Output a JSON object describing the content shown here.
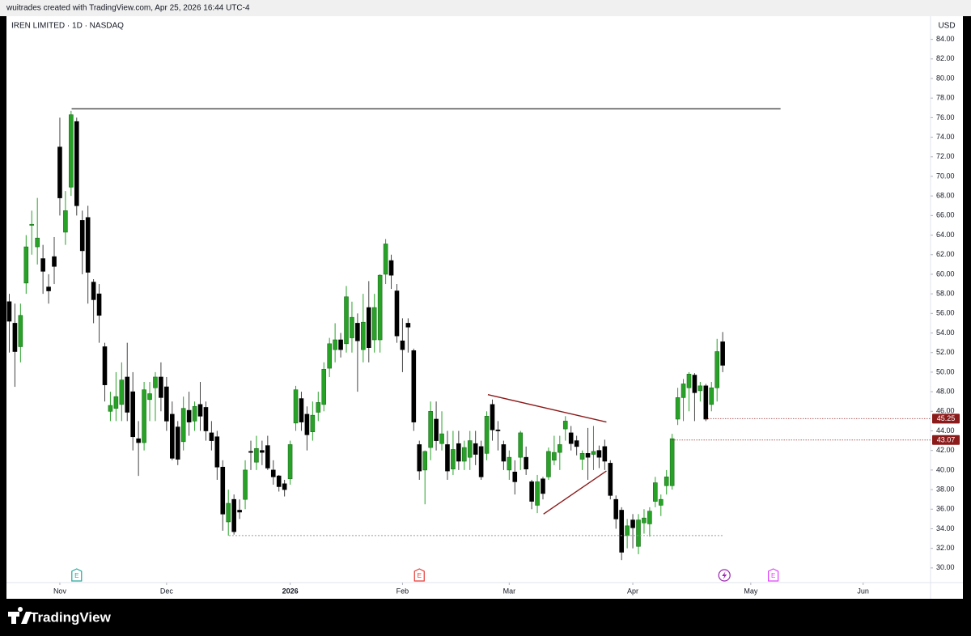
{
  "header": {
    "credit": "wuitrades created with TradingView.com, Apr 25, 2026 16:44 UTC-4"
  },
  "footer": {
    "brand": "TradingView"
  },
  "chart_data": {
    "type": "candlestick",
    "title": "IREN LIMITED · 1D · NASDAQ",
    "currency": "USD",
    "up_color": "#27a227",
    "down_color": "#000000",
    "open": [
      57.2,
      55,
      52.6,
      59.1,
      65,
      62.8,
      61.6,
      58.7,
      61.8,
      73,
      64.3,
      68.9,
      75.6,
      65.5,
      65.8,
      59.2,
      58,
      52.6,
      46,
      46.3,
      46.7,
      49.5,
      48,
      43.2,
      42.8,
      47.2,
      48.4,
      49.5,
      48.5,
      45.7,
      44.4,
      42.9,
      46.1,
      45,
      46.7,
      46.4,
      43.8,
      43.4,
      40.3,
      34.7,
      37,
      35.9,
      37,
      41.9,
      40.8,
      42,
      42.5,
      40,
      39.4,
      38.6,
      39.1,
      44.8,
      47.3,
      45.7,
      43.9,
      45.9,
      46.7,
      50.4,
      52.3,
      53.3,
      52.9,
      53.5,
      55,
      52.3,
      56.6,
      53.3,
      53.3,
      60,
      61.4,
      58.3,
      53.2,
      55,
      52.2,
      42.6,
      40,
      42.3,
      45.2,
      42.7,
      42.6,
      40.1,
      42.7,
      40.9,
      41.3,
      42.7,
      42.4,
      41.7,
      46.7,
      44.1,
      42.6,
      40,
      39.8,
      41.3,
      41.3,
      38.8,
      36.4,
      39.1,
      39.3,
      41,
      41.8,
      44.2,
      43.8,
      43,
      41.1,
      41.7,
      41.6,
      42,
      42.4,
      40.7,
      37,
      35.9,
      33.3,
      34.9,
      32.2,
      34.6,
      34.5,
      36.8,
      36.4,
      38.4,
      38.4,
      45.2,
      47.4,
      48.4,
      49.7,
      48.1,
      48.6,
      46.7,
      48.4,
      53.1
    ],
    "high": [
      58,
      57,
      57,
      64,
      66.5,
      67.8,
      63,
      60,
      63.8,
      76,
      68.5,
      76.7,
      76,
      66.5,
      67,
      59.5,
      59,
      53,
      48,
      50,
      51,
      53,
      50,
      45,
      49,
      49,
      50,
      51,
      49.5,
      47,
      45,
      47.5,
      48,
      47,
      49,
      47,
      45,
      44,
      41,
      38,
      37.5,
      37,
      41,
      43,
      43.5,
      43,
      43.5,
      41,
      39.5,
      39,
      43,
      48.6,
      48,
      46.5,
      47,
      48,
      51,
      53.5,
      55,
      54,
      58.8,
      57.2,
      56,
      58,
      59.3,
      58,
      60,
      63.6,
      62,
      59,
      55.5,
      55.5,
      52.4,
      43,
      42,
      47,
      47,
      46,
      44,
      44,
      44,
      43,
      44,
      44,
      43,
      46,
      47.2,
      45,
      43,
      42,
      41,
      44,
      42.4,
      39,
      39.5,
      39.3,
      42.3,
      43.5,
      43.5,
      45.5,
      44.5,
      43.5,
      42,
      44.3,
      44.5,
      42.5,
      43.1,
      41,
      37.4,
      36.2,
      35,
      35.5,
      35.5,
      36,
      36.2,
      39.3,
      37.5,
      40,
      43.7,
      48.4,
      49.3,
      50,
      49.9,
      49,
      48.8,
      49,
      53.4,
      54.1
    ],
    "low": [
      52,
      48.5,
      51,
      58,
      62,
      61,
      58,
      57,
      59,
      66,
      63,
      68,
      66,
      60,
      57,
      55,
      53,
      47,
      45,
      45,
      45,
      45,
      42,
      39.4,
      42,
      45,
      45,
      46,
      44,
      41,
      40.5,
      42,
      43.5,
      44,
      44,
      43,
      42,
      39,
      33.8,
      33.3,
      33.4,
      35,
      36,
      40,
      40,
      40.5,
      40,
      38.5,
      37.8,
      37.3,
      38.5,
      44,
      44,
      42,
      43,
      45,
      46,
      49.5,
      51,
      51.5,
      52,
      52,
      48,
      51,
      51,
      52,
      52,
      59,
      58.5,
      53,
      50,
      52,
      44,
      39,
      36.5,
      41,
      42,
      42,
      39,
      39.5,
      40,
      40,
      40,
      40.5,
      39,
      41,
      43,
      42,
      40,
      39,
      37.5,
      40,
      39.5,
      36,
      35.6,
      37,
      39,
      40.5,
      40,
      43,
      42,
      41.5,
      40,
      39,
      40,
      40.2,
      40,
      37,
      34,
      30.8,
      32,
      32,
      31.4,
      33.5,
      33.2,
      36.2,
      35.3,
      37.5,
      38,
      44.6,
      45,
      46,
      45,
      47,
      45,
      46,
      47,
      50
    ],
    "close": [
      55.2,
      52.1,
      55.8,
      62.8,
      65.1,
      63.7,
      60.3,
      58.3,
      60.8,
      67.8,
      66.5,
      76.3,
      67,
      62.4,
      60.2,
      57.4,
      55.8,
      48.7,
      46.6,
      47.5,
      49.2,
      45.9,
      43.4,
      42.8,
      48.2,
      47.8,
      49.5,
      47.4,
      45,
      41.2,
      41.1,
      46.3,
      44.9,
      46.5,
      45.5,
      44,
      43,
      40.3,
      35.5,
      36.6,
      33.7,
      35.7,
      40,
      41.8,
      42.2,
      41.8,
      40.2,
      39.3,
      38.3,
      38,
      42.6,
      48.2,
      44.9,
      43.6,
      45.6,
      46.9,
      50.3,
      52.9,
      53.3,
      52.3,
      57.7,
      55.6,
      53.2,
      55.1,
      52.5,
      56.6,
      59.9,
      63.1,
      59.9,
      53.7,
      52.3,
      54.6,
      44.9,
      39.9,
      41.9,
      46,
      43,
      43.7,
      39.9,
      42.1,
      40.9,
      42.3,
      43,
      41.6,
      39.3,
      45.5,
      44.1,
      44,
      40.9,
      41.3,
      38.8,
      43.8,
      40.1,
      36.8,
      38.8,
      37.6,
      41.9,
      41.8,
      42.6,
      45,
      42.7,
      42.4,
      41.7,
      41.3,
      41.9,
      41.3,
      40.9,
      37.4,
      35,
      31.6,
      34.3,
      34.1,
      34.9,
      35.1,
      35.8,
      38.7,
      37,
      39.3,
      43.2,
      47.4,
      48.8,
      49.8,
      47.9,
      48.6,
      45.2,
      48.4,
      52.1,
      50.7
    ],
    "xlim": [
      -0.5,
      164
    ],
    "xticks": [
      {
        "value": 9,
        "label": "Nov"
      },
      {
        "value": 28,
        "label": "Dec"
      },
      {
        "value": 50,
        "label": "2026"
      },
      {
        "value": 70,
        "label": "Feb"
      },
      {
        "value": 89,
        "label": "Mar"
      },
      {
        "value": 111,
        "label": "Apr"
      },
      {
        "value": 132,
        "label": "May"
      },
      {
        "value": 152,
        "label": "Jun"
      }
    ],
    "ylim": [
      28.5,
      86.2
    ],
    "yticks": [
      {
        "value": 30,
        "label": "30.00"
      },
      {
        "value": 32,
        "label": "32.00"
      },
      {
        "value": 34,
        "label": "34.00"
      },
      {
        "value": 36,
        "label": "36.00"
      },
      {
        "value": 38,
        "label": "38.00"
      },
      {
        "value": 40,
        "label": "40.00"
      },
      {
        "value": 42,
        "label": "42.00"
      },
      {
        "value": 44,
        "label": "44.00"
      },
      {
        "value": 46,
        "label": "46.00"
      },
      {
        "value": 48,
        "label": "48.00"
      },
      {
        "value": 50,
        "label": "50.00"
      },
      {
        "value": 52,
        "label": "52.00"
      },
      {
        "value": 54,
        "label": "54.00"
      },
      {
        "value": 56,
        "label": "56.00"
      },
      {
        "value": 58,
        "label": "58.00"
      },
      {
        "value": 60,
        "label": "60.00"
      },
      {
        "value": 62,
        "label": "62.00"
      },
      {
        "value": 64,
        "label": "64.00"
      },
      {
        "value": 66,
        "label": "66.00"
      },
      {
        "value": 68,
        "label": "68.00"
      },
      {
        "value": 70,
        "label": "70.00"
      },
      {
        "value": 72,
        "label": "72.00"
      },
      {
        "value": 74,
        "label": "74.00"
      },
      {
        "value": 76,
        "label": "76.00"
      },
      {
        "value": 78,
        "label": "78.00"
      },
      {
        "value": 80,
        "label": "80.00"
      },
      {
        "value": 82,
        "label": "82.00"
      },
      {
        "value": 84,
        "label": "84.00"
      }
    ],
    "lines": [
      {
        "x": [
          11.1,
          137.3
        ],
        "y": [
          76.9,
          76.9
        ],
        "color": "#555555",
        "dashed": false
      },
      {
        "x": [
          39.1,
          127.2
        ],
        "y": [
          33.3,
          33.3
        ],
        "color": "#999999",
        "dashed": true
      },
      {
        "x": [
          85.2,
          106.3
        ],
        "y": [
          47.7,
          44.9
        ],
        "color": "#8b1a1a",
        "dashed": false
      },
      {
        "x": [
          95.1,
          106.3
        ],
        "y": [
          35.5,
          39.9
        ],
        "color": "#8b1a1a",
        "dashed": false
      }
    ],
    "levels": [
      {
        "value": 45.25,
        "label": "45.25",
        "x": 124,
        "color": "#8b1a1a"
      },
      {
        "value": 43.07,
        "label": "43.07",
        "x": 118,
        "color": "#8b1a1a"
      }
    ],
    "events": [
      {
        "x": 12,
        "label": "E",
        "color": "#26a69a"
      },
      {
        "x": 73,
        "label": "E",
        "color": "#e53935"
      },
      {
        "x": 127.3,
        "color": "#9c27b0"
      },
      {
        "x": 136,
        "label": "E",
        "color": "#e040fb"
      }
    ]
  }
}
